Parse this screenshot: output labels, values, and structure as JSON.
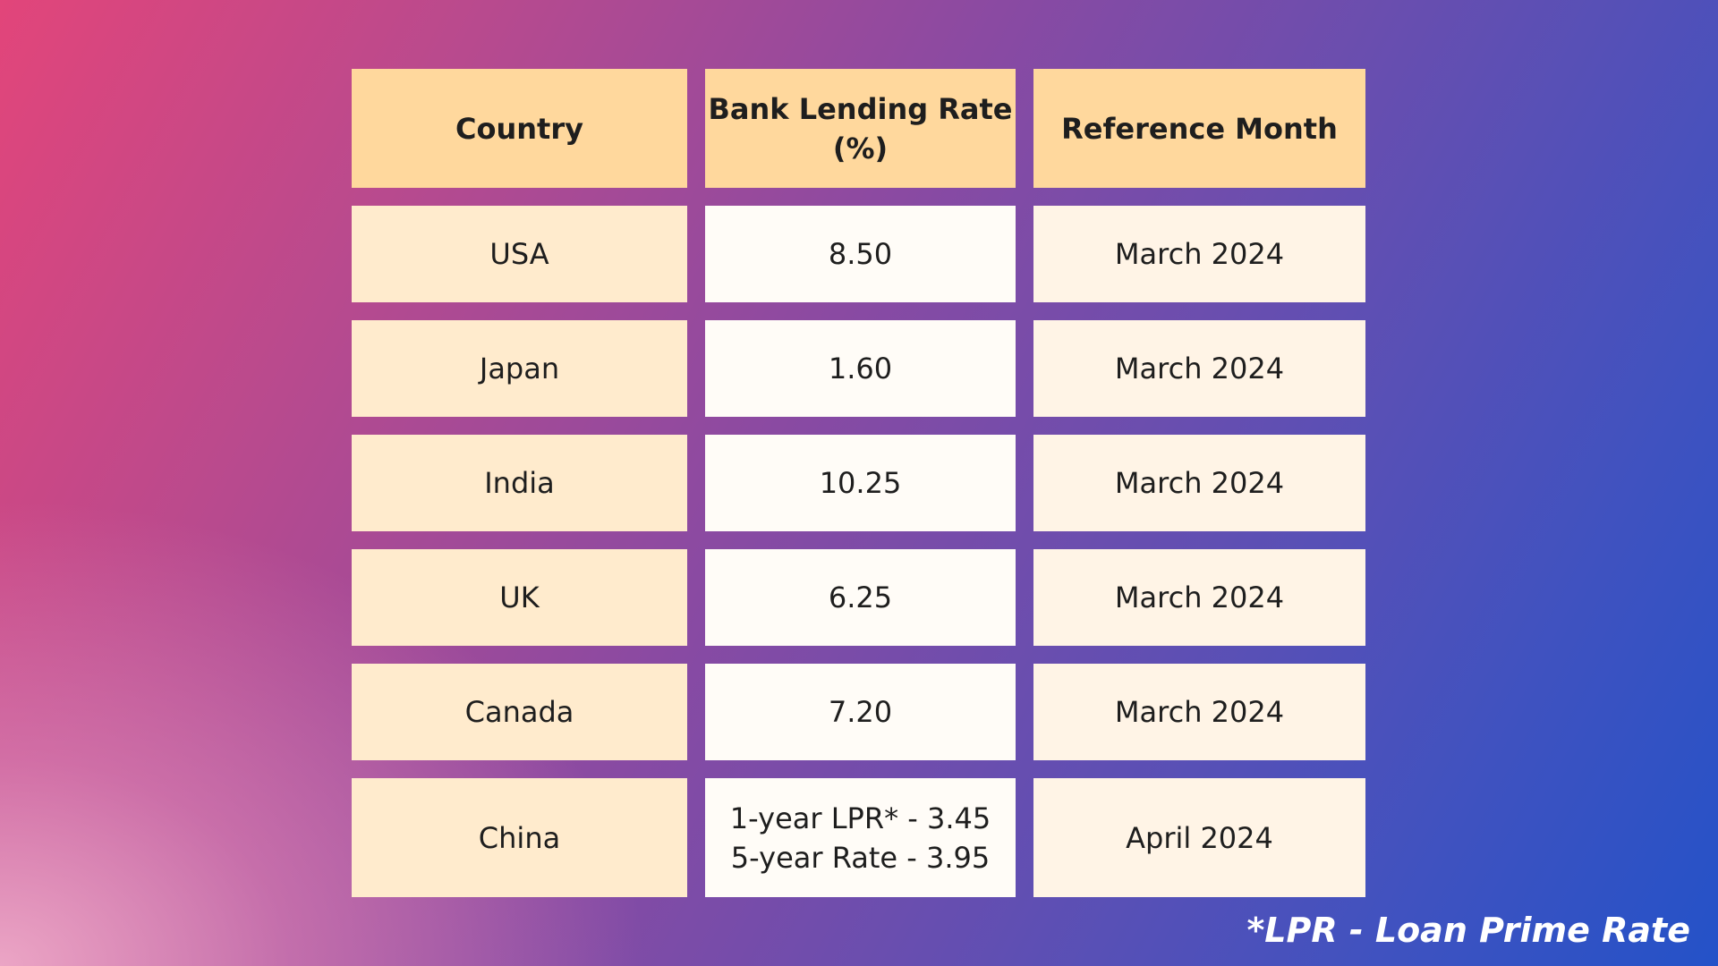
{
  "chart_data": {
    "type": "table",
    "columns": [
      "Country",
      "Bank Lending Rate (%)",
      "Reference Month"
    ],
    "header_lines": [
      [
        "Country"
      ],
      [
        "Bank Lending Rate",
        "(%)"
      ],
      [
        "Reference Month"
      ]
    ],
    "rows": [
      {
        "country": "USA",
        "rate": "8.50",
        "month": "March 2024"
      },
      {
        "country": "Japan",
        "rate": "1.60",
        "month": "March 2024"
      },
      {
        "country": "India",
        "rate": "10.25",
        "month": "March 2024"
      },
      {
        "country": "UK",
        "rate": "6.25",
        "month": "March 2024"
      },
      {
        "country": "Canada",
        "rate": "7.20",
        "month": "March 2024"
      },
      {
        "country": "China",
        "rate_lines": [
          "1-year LPR* - 3.45",
          "5-year Rate - 3.95"
        ],
        "month": "April 2024"
      }
    ],
    "footnote": "*LPR - Loan Prime Rate"
  },
  "colors": {
    "header_fill": "#ffd89d",
    "country_fill": "#ffebcd",
    "rate_fill": "#fffcf7",
    "month_fill": "#fff4e6",
    "text": "#1e1e1e",
    "footnote_text": "#ffffff"
  }
}
